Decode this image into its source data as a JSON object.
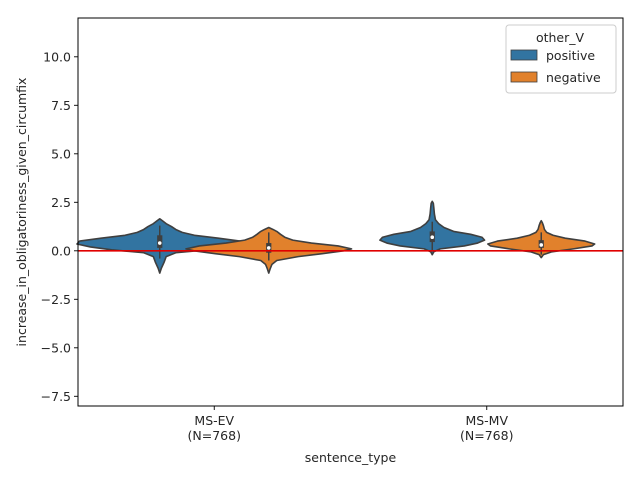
{
  "chart_data": {
    "type": "violin",
    "xlabel": "sentence_type",
    "ylabel": "increase_in_obligatoriness_given_circumfix",
    "ylim": [
      -8.0,
      12.0
    ],
    "yticks": [
      -7.5,
      -5.0,
      -2.5,
      0.0,
      2.5,
      5.0,
      7.5,
      10.0
    ],
    "ytick_labels": [
      "−7.5",
      "−5.0",
      "−2.5",
      "0.0",
      "2.5",
      "5.0",
      "7.5",
      "10.0"
    ],
    "categories": [
      {
        "lines": [
          "MS-EV",
          "(N=768)"
        ]
      },
      {
        "lines": [
          "MS-MV",
          "(N=768)"
        ]
      }
    ],
    "legend": {
      "title": "other_V",
      "position": "top-right",
      "entries": [
        {
          "label": "positive",
          "color": "#3274a1"
        },
        {
          "label": "negative",
          "color": "#e1812c"
        }
      ]
    },
    "reference_line": {
      "y": 0.0,
      "color": "#e00000"
    },
    "violins": [
      {
        "category": 0,
        "series": 0,
        "profile": [
          [
            -1.15,
            0.0
          ],
          [
            -0.9,
            0.03
          ],
          [
            -0.6,
            0.08
          ],
          [
            -0.3,
            0.12
          ],
          [
            -0.1,
            0.3
          ],
          [
            0.05,
            0.9
          ],
          [
            0.2,
            1.3
          ],
          [
            0.35,
            1.55
          ],
          [
            0.5,
            1.5
          ],
          [
            0.65,
            1.1
          ],
          [
            0.8,
            0.65
          ],
          [
            0.95,
            0.42
          ],
          [
            1.1,
            0.3
          ],
          [
            1.25,
            0.22
          ],
          [
            1.4,
            0.12
          ],
          [
            1.55,
            0.05
          ],
          [
            1.65,
            0.0
          ]
        ],
        "q1": 0.15,
        "median": 0.4,
        "q3": 0.8,
        "whisker_low": -0.4,
        "whisker_high": 1.3
      },
      {
        "category": 0,
        "series": 1,
        "profile": [
          [
            -1.15,
            0.0
          ],
          [
            -0.9,
            0.03
          ],
          [
            -0.7,
            0.06
          ],
          [
            -0.5,
            0.15
          ],
          [
            -0.3,
            0.55
          ],
          [
            -0.15,
            1.0
          ],
          [
            0.0,
            1.4
          ],
          [
            0.1,
            1.55
          ],
          [
            0.25,
            1.3
          ],
          [
            0.4,
            0.8
          ],
          [
            0.55,
            0.45
          ],
          [
            0.7,
            0.3
          ],
          [
            0.85,
            0.22
          ],
          [
            1.0,
            0.15
          ],
          [
            1.1,
            0.08
          ],
          [
            1.2,
            0.0
          ]
        ],
        "q1": -0.1,
        "median": 0.15,
        "q3": 0.4,
        "whisker_low": -0.5,
        "whisker_high": 0.95
      },
      {
        "category": 1,
        "series": 0,
        "profile": [
          [
            -0.2,
            0.0
          ],
          [
            -0.05,
            0.03
          ],
          [
            0.1,
            0.15
          ],
          [
            0.25,
            0.6
          ],
          [
            0.4,
            0.85
          ],
          [
            0.55,
            0.98
          ],
          [
            0.7,
            0.93
          ],
          [
            0.85,
            0.72
          ],
          [
            1.0,
            0.4
          ],
          [
            1.2,
            0.22
          ],
          [
            1.4,
            0.12
          ],
          [
            1.6,
            0.06
          ],
          [
            1.9,
            0.04
          ],
          [
            2.2,
            0.03
          ],
          [
            2.45,
            0.02
          ],
          [
            2.55,
            0.0
          ]
        ],
        "q1": 0.45,
        "median": 0.7,
        "q3": 1.0,
        "whisker_low": 0.0,
        "whisker_high": 1.5
      },
      {
        "category": 1,
        "series": 1,
        "profile": [
          [
            -0.35,
            0.0
          ],
          [
            -0.2,
            0.04
          ],
          [
            -0.05,
            0.2
          ],
          [
            0.1,
            0.6
          ],
          [
            0.25,
            0.95
          ],
          [
            0.35,
            1.0
          ],
          [
            0.5,
            0.82
          ],
          [
            0.65,
            0.45
          ],
          [
            0.8,
            0.22
          ],
          [
            0.95,
            0.1
          ],
          [
            1.1,
            0.06
          ],
          [
            1.3,
            0.04
          ],
          [
            1.45,
            0.02
          ],
          [
            1.55,
            0.0
          ]
        ],
        "q1": 0.15,
        "median": 0.3,
        "q3": 0.55,
        "whisker_low": -0.2,
        "whisker_high": 0.95
      }
    ]
  }
}
